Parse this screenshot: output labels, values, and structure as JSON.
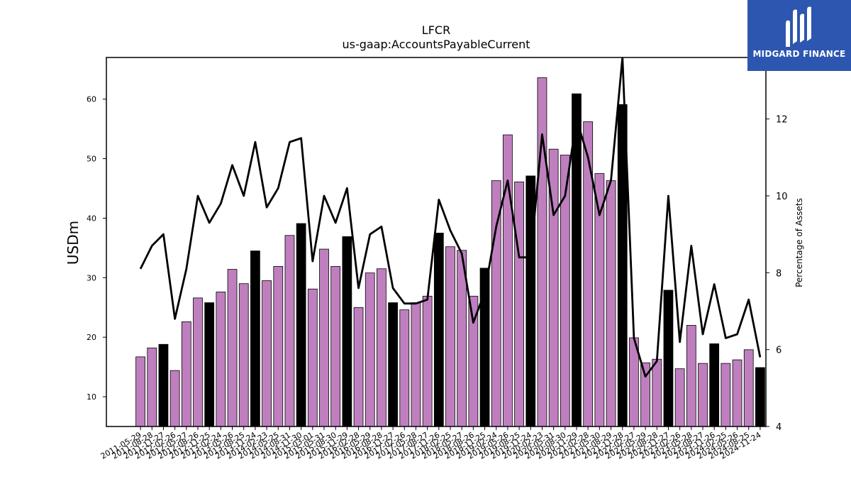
{
  "brand": {
    "name": "MIDGARD FINANCE",
    "bg_color": "#2d56b0",
    "icon": "midgard-m-logo-icon"
  },
  "chart_data": {
    "type": "bar",
    "title": "LFCR",
    "subtitle": "us-gaap:AccountsPayableCurrent",
    "ylabel": "USDm",
    "y2label": "Percentage of Assets",
    "ylim": [
      5,
      67
    ],
    "y2lim": [
      4,
      13.6
    ],
    "yticks": [
      10,
      20,
      30,
      40,
      50,
      60
    ],
    "y2ticks": [
      4,
      6,
      8,
      10,
      12
    ],
    "grid": false,
    "colors": {
      "bar": "#bf7fbf",
      "bar_highlight": "#000000",
      "line": "#000000"
    },
    "categories": [
      "2011-05-29",
      "2011-08-28",
      "2011-11-27",
      "2012-02-26",
      "2012-05-27",
      "2012-08-26",
      "2012-11-25",
      "2013-02-24",
      "2013-05-26",
      "2013-08-25",
      "2013-11-24",
      "2014-02-23",
      "2014-05-25",
      "2014-08-31",
      "2014-11-30",
      "2015-03-01",
      "2015-05-31",
      "2015-08-30",
      "2015-11-29",
      "2016-02-28",
      "2016-05-29",
      "2016-08-28",
      "2016-11-27",
      "2017-02-26",
      "2017-05-28",
      "2017-08-27",
      "2017-11-26",
      "2018-02-25",
      "2018-05-27",
      "2018-08-26",
      "2018-11-25",
      "2019-02-24",
      "2019-05-26",
      "2019-08-25",
      "2019-11-24",
      "2020-02-23",
      "2020-05-31",
      "2020-08-30",
      "2020-11-29",
      "2021-02-28",
      "2021-05-30",
      "2021-08-29",
      "2021-11-28",
      "2022-02-27",
      "2022-05-29",
      "2022-08-28",
      "2022-11-27",
      "2023-02-26",
      "2023-05-28",
      "2023-08-27",
      "2023-11-26",
      "2024-02-25",
      "2024-05-26",
      "2024-08-25",
      "2024-11-24"
    ],
    "series": [
      {
        "kind": "bar",
        "axis": "left",
        "values": [
          16.7,
          18.2,
          18.8,
          14.4,
          22.6,
          26.6,
          25.8,
          27.6,
          31.4,
          29.0,
          34.5,
          29.5,
          31.9,
          37.1,
          39.1,
          28.1,
          34.8,
          31.9,
          36.9,
          25.0,
          30.8,
          31.5,
          25.8,
          24.6,
          25.8,
          26.9,
          37.5,
          35.2,
          34.6,
          26.9,
          31.6,
          46.3,
          54.0,
          46.1,
          47.1,
          63.6,
          51.6,
          50.6,
          60.9,
          56.2,
          47.5,
          46.3,
          59.1,
          19.9,
          15.7,
          16.3,
          27.9,
          14.7,
          22.0,
          15.6,
          18.9,
          15.6,
          16.2,
          17.9,
          14.9
        ]
      },
      {
        "kind": "line",
        "axis": "right",
        "values": [
          8.1,
          8.7,
          9.0,
          6.8,
          8.1,
          10.0,
          9.3,
          9.8,
          10.8,
          10.0,
          11.4,
          9.7,
          10.2,
          11.4,
          11.5,
          8.3,
          10.0,
          9.3,
          10.2,
          7.6,
          9.0,
          9.2,
          7.6,
          7.2,
          7.2,
          7.3,
          9.9,
          9.1,
          8.5,
          6.7,
          7.5,
          9.2,
          10.4,
          8.4,
          8.4,
          11.6,
          9.5,
          10.0,
          12.0,
          11.0,
          9.5,
          10.4,
          13.6,
          6.3,
          5.3,
          5.7,
          10.0,
          6.2,
          8.7,
          6.4,
          7.7,
          6.3,
          6.4,
          7.3,
          5.8
        ]
      }
    ],
    "highlight": [
      0,
      0,
      1,
      0,
      0,
      0,
      1,
      0,
      0,
      0,
      1,
      0,
      0,
      0,
      1,
      0,
      0,
      0,
      1,
      0,
      0,
      0,
      1,
      0,
      0,
      0,
      1,
      0,
      0,
      0,
      1,
      0,
      0,
      0,
      1,
      0,
      0,
      0,
      1,
      0,
      0,
      0,
      1,
      0,
      0,
      0,
      1,
      0,
      0,
      0,
      1,
      0,
      0,
      0,
      1
    ]
  }
}
